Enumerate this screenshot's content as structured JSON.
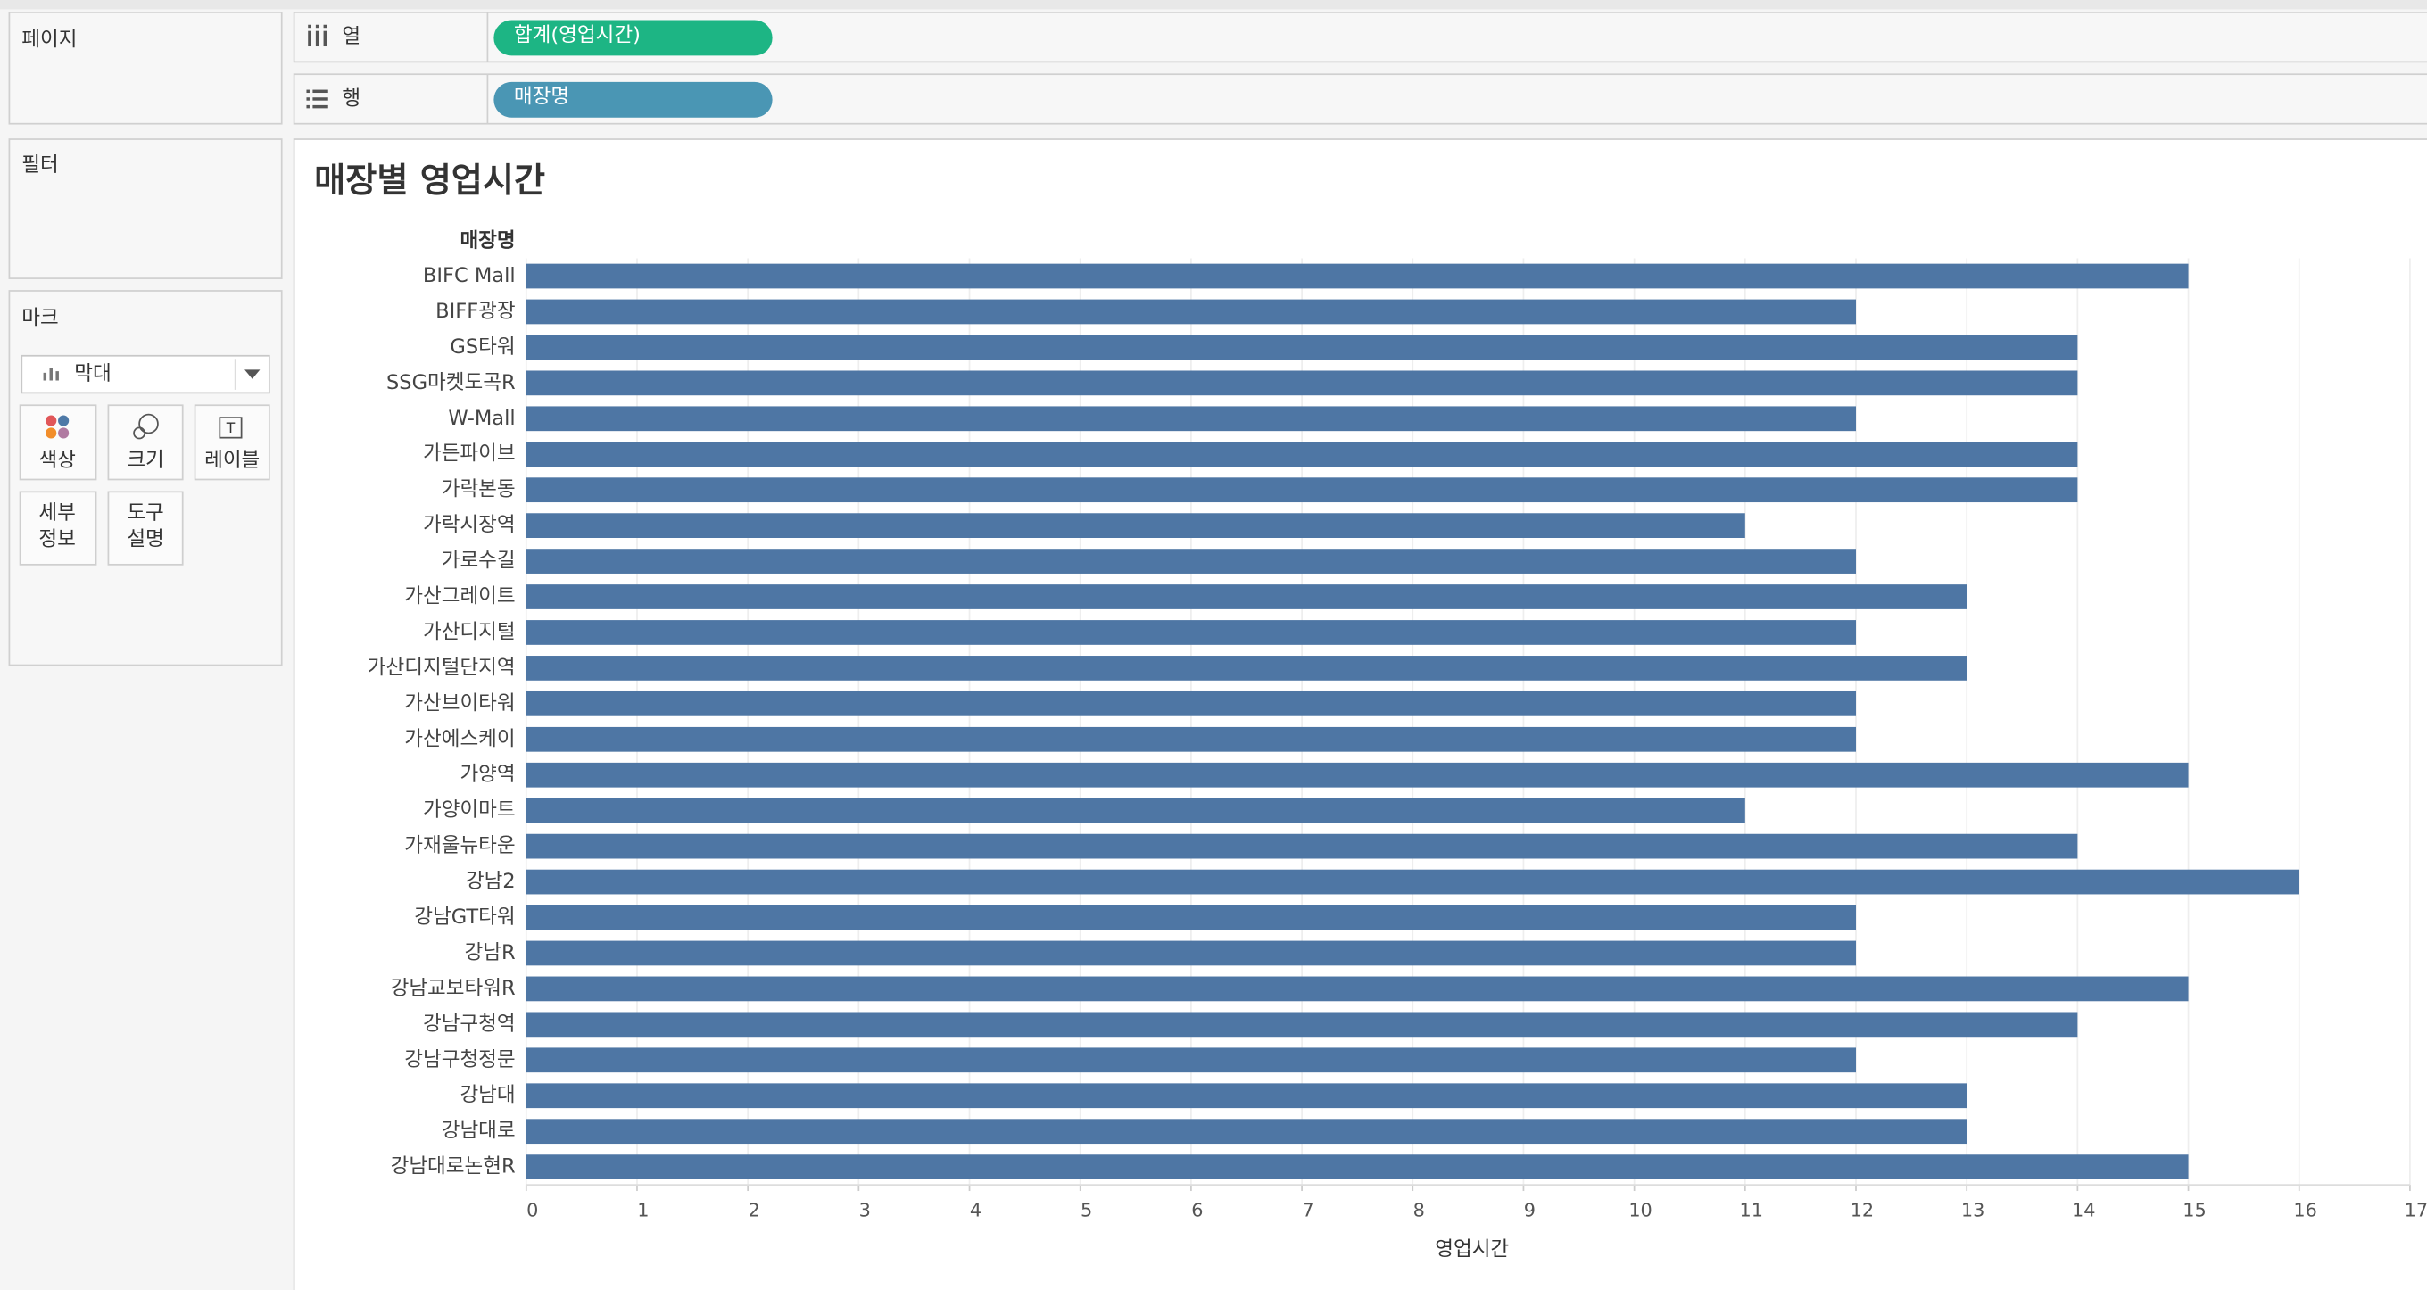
{
  "ui": {
    "pages": "페이지",
    "filters": "필터",
    "marks": "마크",
    "mark_type": "막대",
    "mark_cards": {
      "color": "색상",
      "size": "크기",
      "label": "레이블",
      "detail": [
        "세부",
        "정보"
      ],
      "tooltip": [
        "도구",
        "설명"
      ]
    },
    "columns_label": "열",
    "rows_label": "행",
    "columns_pill": "합계(영업시간)",
    "rows_pill": "매장명"
  },
  "chart_data": {
    "type": "bar",
    "orientation": "horizontal",
    "title": "매장별 영업시간",
    "y_label": "매장명",
    "x_label": "영업시간",
    "categories": [
      "BIFC Mall",
      "BIFF광장",
      "GS타워",
      "SSG마켓도곡R",
      "W-Mall",
      "가든파이브",
      "가락본동",
      "가락시장역",
      "가로수길",
      "가산그레이트",
      "가산디지털",
      "가산디지털단지역",
      "가산브이타워",
      "가산에스케이",
      "가양역",
      "가양이마트",
      "가재울뉴타운",
      "강남2",
      "강남GT타워",
      "강남R",
      "강남교보타워R",
      "강남구청역",
      "강남구청정문",
      "강남대",
      "강남대로",
      "강남대로논현R"
    ],
    "values": [
      15,
      12,
      14,
      14,
      12,
      14,
      14,
      11,
      12,
      13,
      12,
      13,
      12,
      12,
      15,
      11,
      14,
      16,
      12,
      12,
      15,
      14,
      12,
      13,
      13,
      15
    ],
    "color": "#4e76a4",
    "xlim": [
      0,
      17
    ],
    "xticks": [
      0,
      1,
      2,
      3,
      4,
      5,
      6,
      7,
      8,
      9,
      10,
      11,
      12,
      13,
      14,
      15,
      16,
      17
    ],
    "grid": true
  }
}
